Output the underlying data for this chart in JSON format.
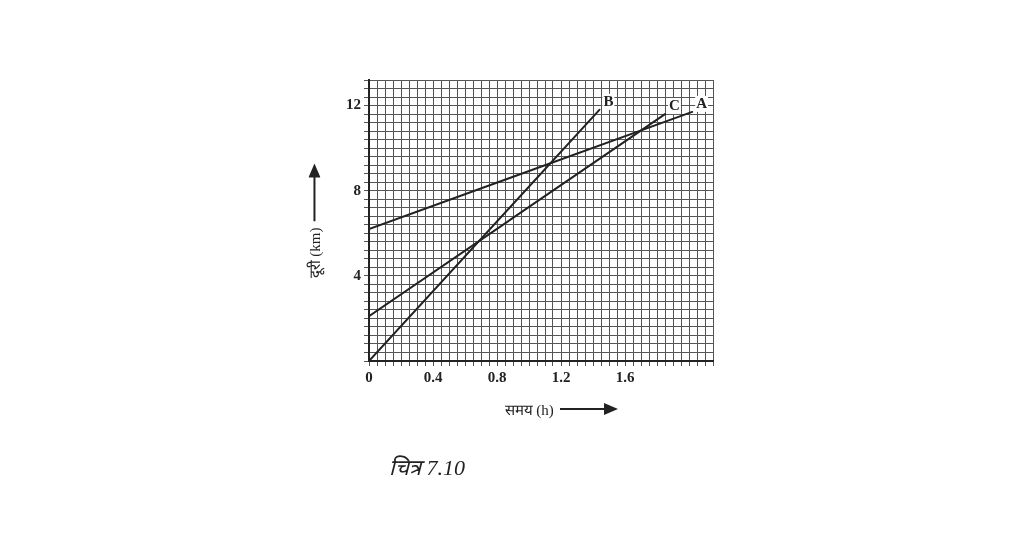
{
  "chart_data": {
    "type": "line",
    "xlabel": "समय (h)",
    "ylabel": "दूरी (km)",
    "annotations": [
      "चित्र 7.10"
    ],
    "xlim": [
      0,
      2.15
    ],
    "ylim": [
      0,
      13.2
    ],
    "xticks": [
      0,
      {
        "value": 0.05,
        "label": null
      },
      {
        "value": 0.1,
        "label": null
      },
      {
        "value": 0.15,
        "label": null
      },
      {
        "value": 0.2,
        "label": null
      },
      {
        "value": 0.25,
        "label": null
      },
      {
        "value": 0.3,
        "label": null
      },
      {
        "value": 0.35,
        "label": null
      },
      0.4,
      {
        "value": 0.45,
        "label": null
      },
      {
        "value": 0.5,
        "label": null
      },
      {
        "value": 0.55,
        "label": null
      },
      {
        "value": 0.6,
        "label": null
      },
      {
        "value": 0.65,
        "label": null
      },
      {
        "value": 0.7,
        "label": null
      },
      {
        "value": 0.75,
        "label": null
      },
      0.8,
      {
        "value": 0.85,
        "label": null
      },
      {
        "value": 0.9,
        "label": null
      },
      {
        "value": 0.95,
        "label": null
      },
      {
        "value": 1.0,
        "label": null
      },
      {
        "value": 1.05,
        "label": null
      },
      {
        "value": 1.1,
        "label": null
      },
      {
        "value": 1.15,
        "label": null
      },
      1.2,
      {
        "value": 1.25,
        "label": null
      },
      {
        "value": 1.3,
        "label": null
      },
      {
        "value": 1.35,
        "label": null
      },
      {
        "value": 1.4,
        "label": null
      },
      {
        "value": 1.45,
        "label": null
      },
      {
        "value": 1.5,
        "label": null
      },
      {
        "value": 1.55,
        "label": null
      },
      1.6,
      {
        "value": 1.65,
        "label": null
      },
      {
        "value": 1.7,
        "label": null
      },
      {
        "value": 1.75,
        "label": null
      },
      {
        "value": 1.8,
        "label": null
      },
      {
        "value": 1.85,
        "label": null
      },
      {
        "value": 1.9,
        "label": null
      },
      {
        "value": 1.95,
        "label": null
      },
      {
        "value": 2.0,
        "label": null
      },
      {
        "value": 2.05,
        "label": null
      },
      {
        "value": 2.1,
        "label": null
      },
      {
        "value": 2.15,
        "label": null
      }
    ],
    "yticks": [
      {
        "value": 0,
        "label": null
      },
      {
        "value": 0.4,
        "label": null
      },
      {
        "value": 0.8,
        "label": null
      },
      {
        "value": 1.2,
        "label": null
      },
      {
        "value": 1.6,
        "label": null
      },
      {
        "value": 2.0,
        "label": null
      },
      {
        "value": 2.4,
        "label": null
      },
      {
        "value": 2.8,
        "label": null
      },
      {
        "value": 3.2,
        "label": null
      },
      {
        "value": 3.6,
        "label": null
      },
      4,
      {
        "value": 4.4,
        "label": null
      },
      {
        "value": 4.8,
        "label": null
      },
      {
        "value": 5.2,
        "label": null
      },
      {
        "value": 5.6,
        "label": null
      },
      {
        "value": 6.0,
        "label": null
      },
      {
        "value": 6.4,
        "label": null
      },
      {
        "value": 6.8,
        "label": null
      },
      {
        "value": 7.2,
        "label": null
      },
      {
        "value": 7.6,
        "label": null
      },
      8,
      {
        "value": 8.4,
        "label": null
      },
      {
        "value": 8.8,
        "label": null
      },
      {
        "value": 9.2,
        "label": null
      },
      {
        "value": 9.6,
        "label": null
      },
      {
        "value": 10.0,
        "label": null
      },
      {
        "value": 10.4,
        "label": null
      },
      {
        "value": 10.8,
        "label": null
      },
      {
        "value": 11.2,
        "label": null
      },
      {
        "value": 11.6,
        "label": null
      },
      12,
      {
        "value": 12.4,
        "label": null
      },
      {
        "value": 12.8,
        "label": null
      },
      {
        "value": 13.2,
        "label": null
      }
    ],
    "grid": true,
    "legend": false,
    "marker": "none",
    "line_style": "solid",
    "series": [
      {
        "name": "A",
        "color": "#222222",
        "x": [
          0,
          2.02
        ],
        "values": [
          6.2,
          11.7
        ]
      },
      {
        "name": "B",
        "color": "#222222",
        "x": [
          0,
          1.44
        ],
        "values": [
          0,
          11.8
        ]
      },
      {
        "name": "C",
        "color": "#222222",
        "x": [
          0,
          1.85
        ],
        "values": [
          2.1,
          11.6
        ]
      }
    ]
  }
}
